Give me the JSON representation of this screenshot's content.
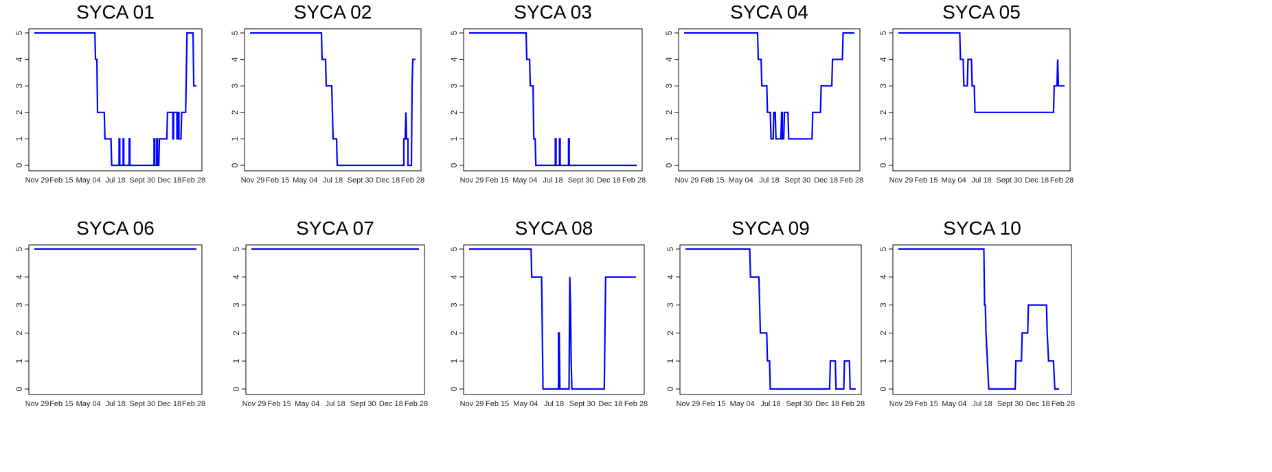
{
  "chart_data": [
    {
      "type": "line",
      "title": "SYCA 01",
      "x": [
        "Nov 29",
        "Feb 15",
        "May 04",
        "Jul 18",
        "Sept 30",
        "Dec 18",
        "Feb 28"
      ],
      "ylim": [
        0,
        5
      ],
      "yticks": [
        0,
        1,
        2,
        3,
        4,
        5
      ],
      "grid": false,
      "line_color": "#0000ff",
      "series": [
        {
          "values": [
            [
              0,
              5
            ],
            [
              4.5,
              5
            ],
            [
              4.55,
              4
            ],
            [
              4.65,
              4
            ],
            [
              4.7,
              2
            ],
            [
              5.2,
              2
            ],
            [
              5.25,
              1
            ],
            [
              5.7,
              1
            ],
            [
              5.75,
              0
            ],
            [
              6.3,
              0
            ],
            [
              6.3,
              1
            ],
            [
              6.35,
              1
            ],
            [
              6.35,
              0
            ],
            [
              6.6,
              0
            ],
            [
              6.6,
              1
            ],
            [
              6.65,
              1
            ],
            [
              6.65,
              0
            ],
            [
              7.05,
              0
            ],
            [
              7.05,
              1
            ],
            [
              7.1,
              1
            ],
            [
              7.1,
              0
            ],
            [
              8.9,
              0
            ],
            [
              8.9,
              1
            ],
            [
              8.95,
              1
            ],
            [
              8.95,
              0
            ],
            [
              9.1,
              0
            ],
            [
              9.1,
              1
            ],
            [
              9.15,
              1
            ],
            [
              9.15,
              0
            ],
            [
              9.25,
              0
            ],
            [
              9.3,
              1
            ],
            [
              9.85,
              1
            ],
            [
              9.9,
              2
            ],
            [
              10.3,
              2
            ],
            [
              10.3,
              1
            ],
            [
              10.35,
              1
            ],
            [
              10.35,
              2
            ],
            [
              10.6,
              2
            ],
            [
              10.6,
              1
            ],
            [
              10.65,
              1
            ],
            [
              10.65,
              2
            ],
            [
              10.75,
              2
            ],
            [
              10.75,
              1
            ],
            [
              10.9,
              1
            ],
            [
              10.95,
              2
            ],
            [
              11.25,
              2
            ],
            [
              11.35,
              5
            ],
            [
              11.8,
              5
            ],
            [
              11.85,
              3
            ],
            [
              12.05,
              3
            ]
          ]
        }
      ]
    },
    {
      "type": "line",
      "title": "SYCA 02",
      "x": [
        "Nov 29",
        "Feb 15",
        "May 04",
        "Jul 18",
        "Sept 30",
        "Dec 18",
        "Feb 28"
      ],
      "ylim": [
        0,
        5
      ],
      "yticks": [
        0,
        1,
        2,
        3,
        4,
        5
      ],
      "grid": false,
      "line_color": "#0000ff",
      "series": [
        {
          "values": [
            [
              0,
              5
            ],
            [
              5.2,
              5
            ],
            [
              5.25,
              4
            ],
            [
              5.5,
              4
            ],
            [
              5.55,
              3
            ],
            [
              5.95,
              3
            ],
            [
              6.05,
              1
            ],
            [
              6.3,
              1
            ],
            [
              6.35,
              0
            ],
            [
              11.2,
              0
            ],
            [
              11.2,
              1
            ],
            [
              11.3,
              1
            ],
            [
              11.35,
              2
            ],
            [
              11.4,
              1
            ],
            [
              11.5,
              1
            ],
            [
              11.5,
              0
            ],
            [
              11.75,
              0
            ],
            [
              11.8,
              3
            ],
            [
              11.85,
              4
            ],
            [
              12.05,
              4
            ]
          ]
        }
      ]
    },
    {
      "type": "line",
      "title": "SYCA 03",
      "x": [
        "Nov 29",
        "Feb 15",
        "May 04",
        "Jul 18",
        "Sept 30",
        "Dec 18",
        "Feb 28"
      ],
      "ylim": [
        0,
        5
      ],
      "yticks": [
        0,
        1,
        2,
        3,
        4,
        5
      ],
      "grid": false,
      "line_color": "#0000ff",
      "series": [
        {
          "values": [
            [
              0,
              5
            ],
            [
              4.1,
              5
            ],
            [
              4.15,
              4
            ],
            [
              4.35,
              4
            ],
            [
              4.4,
              3
            ],
            [
              4.6,
              3
            ],
            [
              4.65,
              1
            ],
            [
              4.75,
              1
            ],
            [
              4.8,
              0
            ],
            [
              6.2,
              0
            ],
            [
              6.2,
              1
            ],
            [
              6.25,
              1
            ],
            [
              6.25,
              0
            ],
            [
              6.5,
              0
            ],
            [
              6.5,
              1
            ],
            [
              6.55,
              1
            ],
            [
              6.55,
              0
            ],
            [
              7.15,
              0
            ],
            [
              7.15,
              1
            ],
            [
              7.2,
              1
            ],
            [
              7.2,
              0
            ],
            [
              12.05,
              0
            ]
          ]
        }
      ]
    },
    {
      "type": "line",
      "title": "SYCA 04",
      "x": [
        "Nov 29",
        "Feb 15",
        "May 04",
        "Jul 18",
        "Sept 30",
        "Dec 18",
        "Feb 28"
      ],
      "ylim": [
        0,
        5
      ],
      "yticks": [
        0,
        1,
        2,
        3,
        4,
        5
      ],
      "grid": false,
      "line_color": "#0000ff",
      "series": [
        {
          "values": [
            [
              0,
              5
            ],
            [
              5.2,
              5
            ],
            [
              5.25,
              4
            ],
            [
              5.45,
              4
            ],
            [
              5.5,
              3
            ],
            [
              5.85,
              3
            ],
            [
              5.9,
              2
            ],
            [
              6.1,
              2
            ],
            [
              6.15,
              1
            ],
            [
              6.3,
              1
            ],
            [
              6.35,
              2
            ],
            [
              6.45,
              2
            ],
            [
              6.5,
              1
            ],
            [
              6.85,
              1
            ],
            [
              6.9,
              2
            ],
            [
              6.95,
              2
            ],
            [
              6.95,
              1
            ],
            [
              7.05,
              1
            ],
            [
              7.1,
              2
            ],
            [
              7.35,
              2
            ],
            [
              7.4,
              1
            ],
            [
              9.05,
              1
            ],
            [
              9.1,
              2
            ],
            [
              9.65,
              2
            ],
            [
              9.7,
              3
            ],
            [
              10.45,
              3
            ],
            [
              10.5,
              4
            ],
            [
              11.2,
              4
            ],
            [
              11.25,
              5
            ],
            [
              12.05,
              5
            ]
          ]
        }
      ]
    },
    {
      "type": "line",
      "title": "SYCA 05",
      "x": [
        "Nov 29",
        "Feb 15",
        "May 04",
        "Jul 18",
        "Sept 30",
        "Dec 18",
        "Feb 28"
      ],
      "ylim": [
        0,
        5
      ],
      "yticks": [
        0,
        1,
        2,
        3,
        4,
        5
      ],
      "grid": false,
      "line_color": "#0000ff",
      "series": [
        {
          "values": [
            [
              0,
              5
            ],
            [
              4.45,
              5
            ],
            [
              4.5,
              4
            ],
            [
              4.7,
              4
            ],
            [
              4.75,
              3
            ],
            [
              5.0,
              3
            ],
            [
              5.05,
              4
            ],
            [
              5.3,
              4
            ],
            [
              5.35,
              3
            ],
            [
              5.5,
              3
            ],
            [
              5.55,
              2
            ],
            [
              11.25,
              2
            ],
            [
              11.3,
              3
            ],
            [
              11.5,
              3
            ],
            [
              11.55,
              4
            ],
            [
              11.6,
              3
            ],
            [
              12.05,
              3
            ]
          ]
        }
      ]
    },
    {
      "type": "line",
      "title": "SYCA 06",
      "x": [
        "Nov 29",
        "Feb 15",
        "May 04",
        "Jul 18",
        "Sept 30",
        "Dec 18",
        "Feb 28"
      ],
      "ylim": [
        0,
        5
      ],
      "yticks": [
        0,
        1,
        2,
        3,
        4,
        5
      ],
      "grid": false,
      "line_color": "#0000ff",
      "series": [
        {
          "values": [
            [
              0,
              5
            ],
            [
              12.05,
              5
            ]
          ]
        }
      ]
    },
    {
      "type": "line",
      "title": "SYCA 07",
      "x": [
        "Nov 29",
        "Feb 15",
        "May 04",
        "Jul 18",
        "Sept 30",
        "Dec 18",
        "Feb 28"
      ],
      "ylim": [
        0,
        5
      ],
      "yticks": [
        0,
        1,
        2,
        3,
        4,
        5
      ],
      "grid": false,
      "line_color": "#0000ff",
      "series": [
        {
          "values": [
            [
              0,
              5
            ],
            [
              12.05,
              5
            ]
          ]
        }
      ]
    },
    {
      "type": "line",
      "title": "SYCA 08",
      "x": [
        "Nov 29",
        "Feb 15",
        "May 04",
        "Jul 18",
        "Sept 30",
        "Dec 18",
        "Feb 28"
      ],
      "ylim": [
        0,
        5
      ],
      "yticks": [
        0,
        1,
        2,
        3,
        4,
        5
      ],
      "grid": false,
      "line_color": "#0000ff",
      "series": [
        {
          "values": [
            [
              0,
              5
            ],
            [
              4.4,
              5
            ],
            [
              4.45,
              4
            ],
            [
              5.15,
              4
            ],
            [
              5.25,
              0
            ],
            [
              6.35,
              0
            ],
            [
              6.35,
              2
            ],
            [
              6.4,
              2
            ],
            [
              6.45,
              0
            ],
            [
              7.1,
              0
            ],
            [
              7.15,
              4
            ],
            [
              7.2,
              3
            ],
            [
              7.25,
              1
            ],
            [
              7.3,
              0
            ],
            [
              9.6,
              0
            ],
            [
              9.7,
              4
            ],
            [
              11.85,
              4
            ]
          ]
        }
      ]
    },
    {
      "type": "line",
      "title": "SYCA 09",
      "x": [
        "Nov 29",
        "Feb 15",
        "May 04",
        "Jul 18",
        "Sept 30",
        "Dec 18",
        "Feb 28"
      ],
      "ylim": [
        0,
        5
      ],
      "yticks": [
        0,
        1,
        2,
        3,
        4,
        5
      ],
      "grid": false,
      "line_color": "#0000ff",
      "series": [
        {
          "values": [
            [
              0,
              5
            ],
            [
              4.55,
              5
            ],
            [
              4.6,
              4
            ],
            [
              5.2,
              4
            ],
            [
              5.25,
              3
            ],
            [
              5.3,
              2
            ],
            [
              5.75,
              2
            ],
            [
              5.8,
              1
            ],
            [
              5.95,
              1
            ],
            [
              6.0,
              0
            ],
            [
              10.2,
              0
            ],
            [
              10.25,
              1
            ],
            [
              10.6,
              1
            ],
            [
              10.65,
              0
            ],
            [
              11.2,
              0
            ],
            [
              11.25,
              1
            ],
            [
              11.6,
              1
            ],
            [
              11.65,
              0
            ],
            [
              12.05,
              0
            ]
          ]
        }
      ]
    },
    {
      "type": "line",
      "title": "SYCA 10",
      "x": [
        "Nov 29",
        "Feb 15",
        "May 04",
        "Jul 18",
        "Sept 30",
        "Dec 18",
        "Feb 28"
      ],
      "ylim": [
        0,
        5
      ],
      "yticks": [
        0,
        1,
        2,
        3,
        4,
        5
      ],
      "grid": false,
      "line_color": "#0000ff",
      "series": [
        {
          "values": [
            [
              0,
              5
            ],
            [
              6.15,
              5
            ],
            [
              6.2,
              3
            ],
            [
              6.25,
              3
            ],
            [
              6.3,
              2
            ],
            [
              6.4,
              1
            ],
            [
              6.5,
              0
            ],
            [
              8.4,
              0
            ],
            [
              8.45,
              1
            ],
            [
              8.85,
              1
            ],
            [
              8.9,
              2
            ],
            [
              9.3,
              2
            ],
            [
              9.35,
              3
            ],
            [
              10.65,
              3
            ],
            [
              10.7,
              2
            ],
            [
              10.8,
              1
            ],
            [
              11.15,
              1
            ],
            [
              11.25,
              0
            ],
            [
              11.55,
              0
            ]
          ]
        }
      ]
    }
  ]
}
